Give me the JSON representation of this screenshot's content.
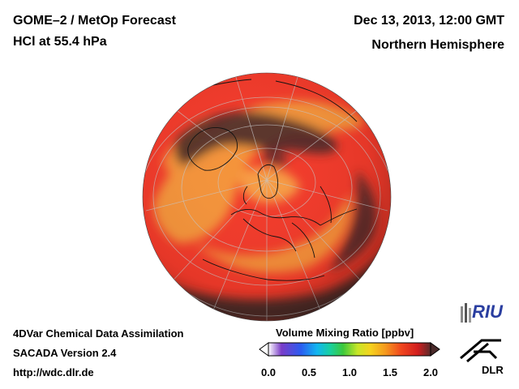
{
  "header": {
    "title_line1": "GOME–2 / MetOp Forecast",
    "title_line2": "HCl at 55.4 hPa",
    "date": "Dec 13, 2013, 12:00 GMT",
    "region": "Northern Hemisphere"
  },
  "footer": {
    "line1": "4DVar Chemical Data Assimilation",
    "line2": "SACADA Version 2.4",
    "line3": "http://wdc.dlr.de"
  },
  "colorbar": {
    "title": "Volume Mixing Ratio [ppbv]",
    "ticks": [
      "0.0",
      "0.5",
      "1.0",
      "1.5",
      "2.0"
    ],
    "range": [
      0.0,
      2.0
    ],
    "colors": [
      "#ffffff",
      "#7a3cc8",
      "#2b5cf0",
      "#12b6f0",
      "#18d0a0",
      "#3cc83c",
      "#c8e628",
      "#f5d21e",
      "#f59a1e",
      "#f0461e",
      "#d21e1e",
      "#5a2a2a"
    ]
  },
  "logos": {
    "riu": "RIU",
    "dlr": "DLR"
  },
  "map": {
    "projection": "orthographic",
    "hemisphere": "northern",
    "colors": {
      "background_red": "#f23a2a",
      "high_orange": "#f5a23c",
      "dark_low": "#4a2a28",
      "coastline": "#000000",
      "grid": "#c8c8c8"
    }
  }
}
